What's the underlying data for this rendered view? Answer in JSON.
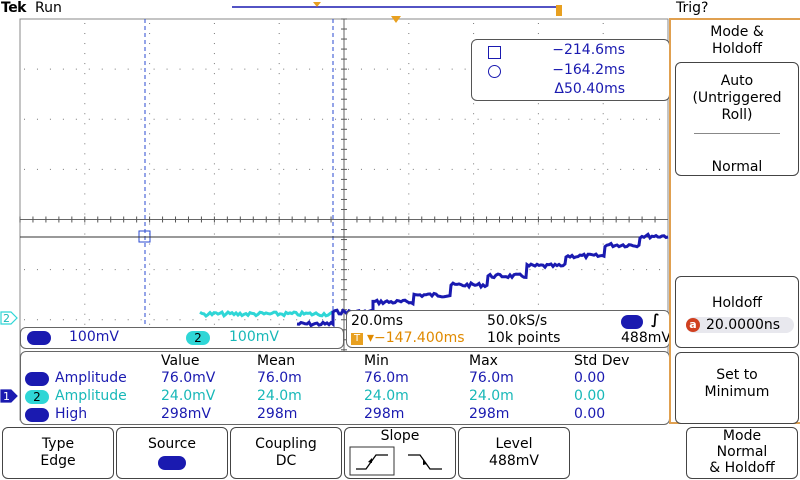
{
  "status": {
    "brand": "Tek",
    "acq_state": "Run",
    "trigger_state": "Trig?"
  },
  "cursor": {
    "a_value": "−214.6ms",
    "b_value": "−164.2ms",
    "delta_value": "Δ50.40ms"
  },
  "channels": {
    "ch1": {
      "number": "1",
      "scale": "100mV",
      "color": "#1a1ab0"
    },
    "ch2": {
      "number": "2",
      "scale": "100mV",
      "color": "#2fd6d6"
    }
  },
  "timebase": {
    "time_per_div": "20.0ms",
    "sample_rate": "50.0kS/s",
    "position": "▾−147.400ms",
    "position_icon": "T",
    "record_length": "10k points",
    "trigger_source": "1",
    "trigger_level": "488mV"
  },
  "measurements": {
    "headers": [
      "Value",
      "Mean",
      "Min",
      "Max",
      "Std Dev"
    ],
    "rows": [
      {
        "channel": "1",
        "name": "Amplitude",
        "value": "76.0mV",
        "mean": "76.0m",
        "min": "76.0m",
        "max": "76.0m",
        "std": "0.00"
      },
      {
        "channel": "2",
        "name": "Amplitude",
        "value": "24.0mV",
        "mean": "24.0m",
        "min": "24.0m",
        "max": "24.0m",
        "std": "0.00"
      },
      {
        "channel": "1",
        "name": "High",
        "value": "298mV",
        "mean": "298m",
        "min": "298m",
        "max": "298m",
        "std": "0.00"
      }
    ]
  },
  "markers": {
    "ch1": "1",
    "ch2": "2"
  },
  "side_menu": {
    "title_line1": "Mode &",
    "title_line2": "Holdoff",
    "auto_line1": "Auto",
    "auto_line2": "(Untriggered",
    "auto_line3": "Roll)",
    "normal_label": "Normal",
    "holdoff_label": "Holdoff",
    "holdoff_knob": "a",
    "holdoff_value": "20.0000ns",
    "setmin_line1": "Set to",
    "setmin_line2": "Minimum"
  },
  "bottom_menu": {
    "type_label": "Type",
    "type_value": "Edge",
    "source_label": "Source",
    "source_value": "1",
    "coupling_label": "Coupling",
    "coupling_value": "DC",
    "slope_label": "Slope",
    "level_label": "Level",
    "level_value": "488mV",
    "mode_line1": "Mode",
    "mode_line2": "Normal",
    "mode_line3": "& Holdoff"
  },
  "colors": {
    "ch1_trace": "#1a1ab0",
    "ch2_trace": "#2fd6d6",
    "trigger": "#e8a020",
    "cursor": "#2a4ad0"
  }
}
